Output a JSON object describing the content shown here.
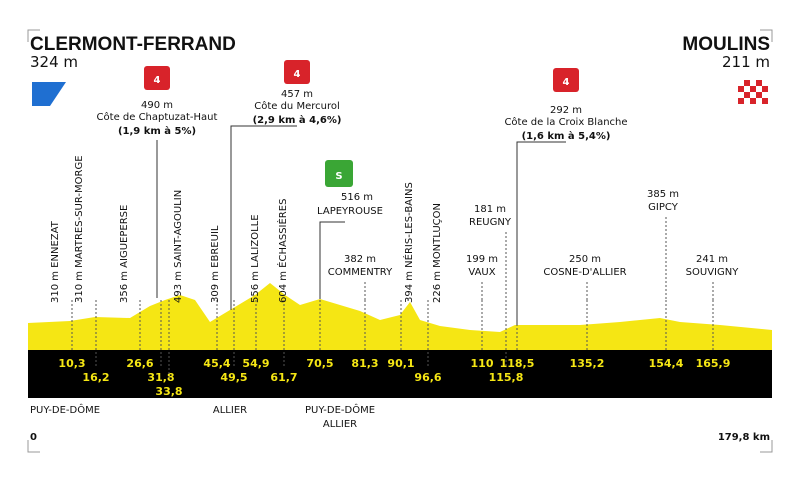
{
  "start": {
    "name": "CLERMONT-FERRAND",
    "altitude": "324 m"
  },
  "finish": {
    "name": "MOULINS",
    "altitude": "211 m"
  },
  "climbs": [
    {
      "category": "4",
      "altitude": "490 m",
      "name": "Côte de Chaptuzat-Haut",
      "detail": "(1,9 km à 5%)"
    },
    {
      "category": "4",
      "altitude": "457 m",
      "name": "Côte du Mercurol",
      "detail": "(2,9 km à 4,6%)"
    },
    {
      "category": "4",
      "altitude": "292 m",
      "name": "Côte de la Croix Blanche",
      "detail": "(1,6 km à 5,4%)"
    }
  ],
  "sprint": {
    "label": "S",
    "altitude": "516 m",
    "name": "LAPEYROUSE"
  },
  "vertical_waypoints": [
    "310 m ENNEZAT",
    "310 m MARTRES-SUR-MORGE",
    "356 m AIGUEPERSE",
    "493 m SAINT-AGOULIN",
    "309 m EBREUIL",
    "556 m LALIZOLLE",
    "604 m ÉCHASSIÈRES",
    "394 m NÉRIS-LES-BAINS",
    "226 m MONTLUÇON"
  ],
  "waypoints": [
    {
      "altitude": "382 m",
      "name": "COMMENTRY"
    },
    {
      "altitude": "199 m",
      "name": "VAUX"
    },
    {
      "altitude": "181 m",
      "name": "REUGNY"
    },
    {
      "altitude": "250 m",
      "name": "COSNE-D'ALLIER"
    },
    {
      "altitude": "385 m",
      "name": "GIPCY"
    },
    {
      "altitude": "241 m",
      "name": "SOUVIGNY"
    }
  ],
  "km_markers": [
    "10,3",
    "16,2",
    "26,6",
    "31,8",
    "33,8",
    "45,4",
    "49,5",
    "54,9",
    "61,7",
    "70,5",
    "81,3",
    "90,1",
    "96,6",
    "110",
    "115,8",
    "118,5",
    "135,2",
    "154,4",
    "165,9"
  ],
  "regions": [
    [
      "PUY-DE-DÔME"
    ],
    [
      "ALLIER"
    ],
    [
      "PUY-DE-DÔME",
      "ALLIER"
    ]
  ],
  "distance": {
    "start": "0",
    "end": "179,8 km"
  }
}
